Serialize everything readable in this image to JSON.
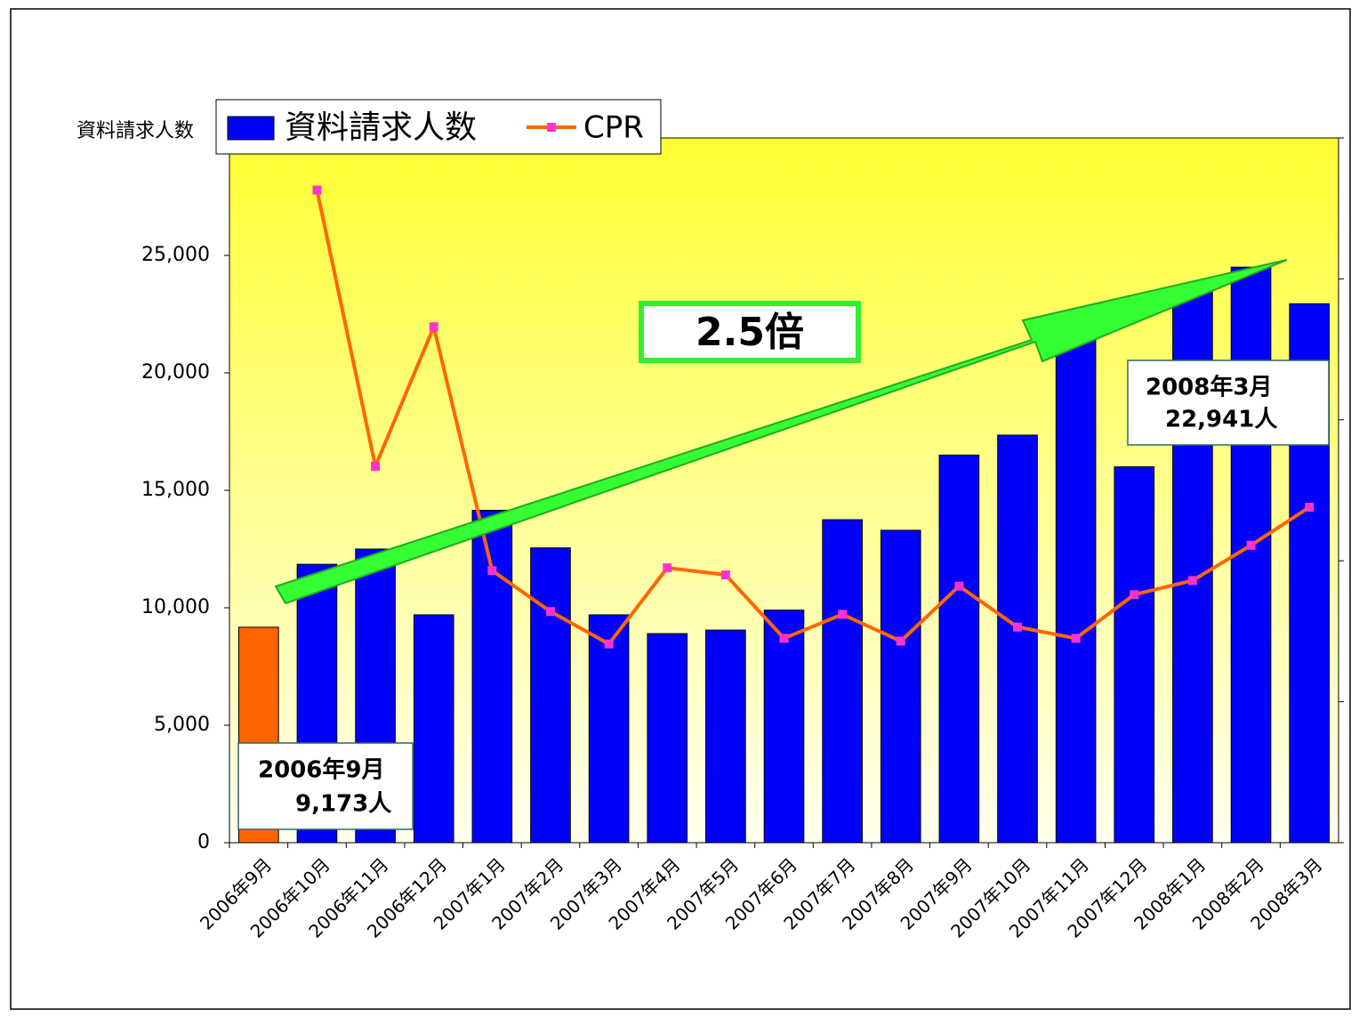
{
  "chart_data": {
    "type": "bar_line",
    "y_label": "資料請求人数",
    "categories": [
      "2006年9月",
      "2006年10月",
      "2006年11月",
      "2006年12月",
      "2007年1月",
      "2007年2月",
      "2007年3月",
      "2007年4月",
      "2007年5月",
      "2007年6月",
      "2007年7月",
      "2007年8月",
      "2007年9月",
      "2007年10月",
      "2007年11月",
      "2007年12月",
      "2008年1月",
      "2008年2月",
      "2008年3月"
    ],
    "series": [
      {
        "name": "資料請求人数",
        "type": "bar",
        "color": "#0000ff",
        "colors": [
          "#ff6600",
          "#0000ff",
          "#0000ff",
          "#0000ff",
          "#0000ff",
          "#0000ff",
          "#0000ff",
          "#0000ff",
          "#0000ff",
          "#0000ff",
          "#0000ff",
          "#0000ff",
          "#0000ff",
          "#0000ff",
          "#0000ff",
          "#0000ff",
          "#0000ff",
          "#0000ff",
          "#0000ff"
        ],
        "values": [
          9173,
          11850,
          12500,
          9700,
          14150,
          12550,
          9700,
          8900,
          9050,
          9900,
          13750,
          13300,
          16500,
          17350,
          22550,
          16000,
          23500,
          24500,
          22941
        ]
      },
      {
        "name": "CPR",
        "type": "line",
        "axis": "y2",
        "color": "#ff6600",
        "marker_color": "#ff33cc",
        "values": [
          null,
          4.63,
          2.67,
          3.66,
          1.93,
          1.64,
          1.41,
          1.95,
          1.9,
          1.45,
          1.62,
          1.43,
          1.82,
          1.53,
          1.45,
          1.76,
          1.86,
          2.11,
          2.38
        ]
      }
    ],
    "ylim": [
      0,
      30000
    ],
    "yticks": [
      0,
      {
        "value": 5000,
        "label": "5,000"
      },
      {
        "value": 10000,
        "label": "10,000"
      },
      {
        "value": 15000,
        "label": "15,000"
      },
      {
        "value": 20000,
        "label": "20,000"
      },
      {
        "value": 25000,
        "label": "25,000"
      }
    ],
    "y2lim": [
      0,
      5
    ],
    "y2ticks": [
      0,
      1,
      2,
      3,
      4,
      5
    ],
    "annotations": [
      {
        "lines": [
          "2.5倍"
        ]
      },
      {
        "lines": [
          "2006年9月",
          "9,173人"
        ]
      },
      {
        "lines": [
          "2008年3月",
          "22,941人"
        ]
      }
    ]
  }
}
